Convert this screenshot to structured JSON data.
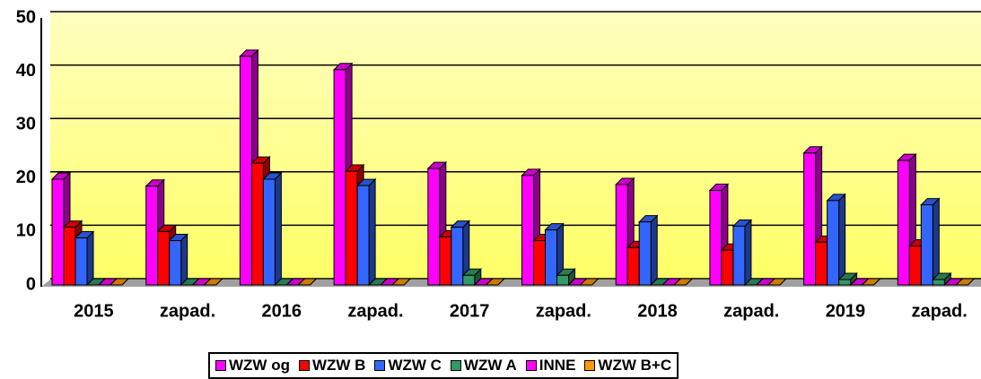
{
  "chart_data": {
    "type": "bar3d",
    "categories": [
      "2015",
      "zapad.",
      "2016",
      "zapad.",
      "2017",
      "zapad.",
      "2018",
      "zapad.",
      "2019",
      "zapad."
    ],
    "series": [
      {
        "name": "WZW og",
        "color": "#ff00ff",
        "values": [
          19.8,
          18.5,
          42.8,
          40.3,
          21.8,
          20.5,
          18.8,
          17.7,
          24.7,
          23.3
        ]
      },
      {
        "name": "WZW B",
        "color": "#ff0000",
        "values": [
          10.8,
          10,
          22.8,
          21.3,
          9,
          8.3,
          7,
          6.5,
          8,
          7.3
        ]
      },
      {
        "name": "WZW C",
        "color": "#3366ff",
        "values": [
          8.8,
          8.3,
          19.8,
          18.6,
          10.8,
          10.3,
          11.8,
          11,
          15.8,
          15
        ]
      },
      {
        "name": "WZW A",
        "color": "#339966",
        "values": [
          0,
          0,
          0,
          0,
          1.8,
          1.8,
          0,
          0,
          1,
          1
        ]
      },
      {
        "name": "INNE",
        "color": "#ff00ff",
        "values": [
          0,
          0,
          0,
          0,
          0,
          0,
          0,
          0,
          0,
          0
        ]
      },
      {
        "name": "WZW B+C",
        "color": "#ff9900",
        "values": [
          0,
          0,
          0,
          0,
          0,
          0,
          0,
          0,
          0,
          0
        ]
      }
    ],
    "ylim": [
      0,
      50
    ],
    "yticks": [
      0,
      10,
      20,
      30,
      40,
      50
    ],
    "grid": true,
    "legend": "bottom"
  }
}
